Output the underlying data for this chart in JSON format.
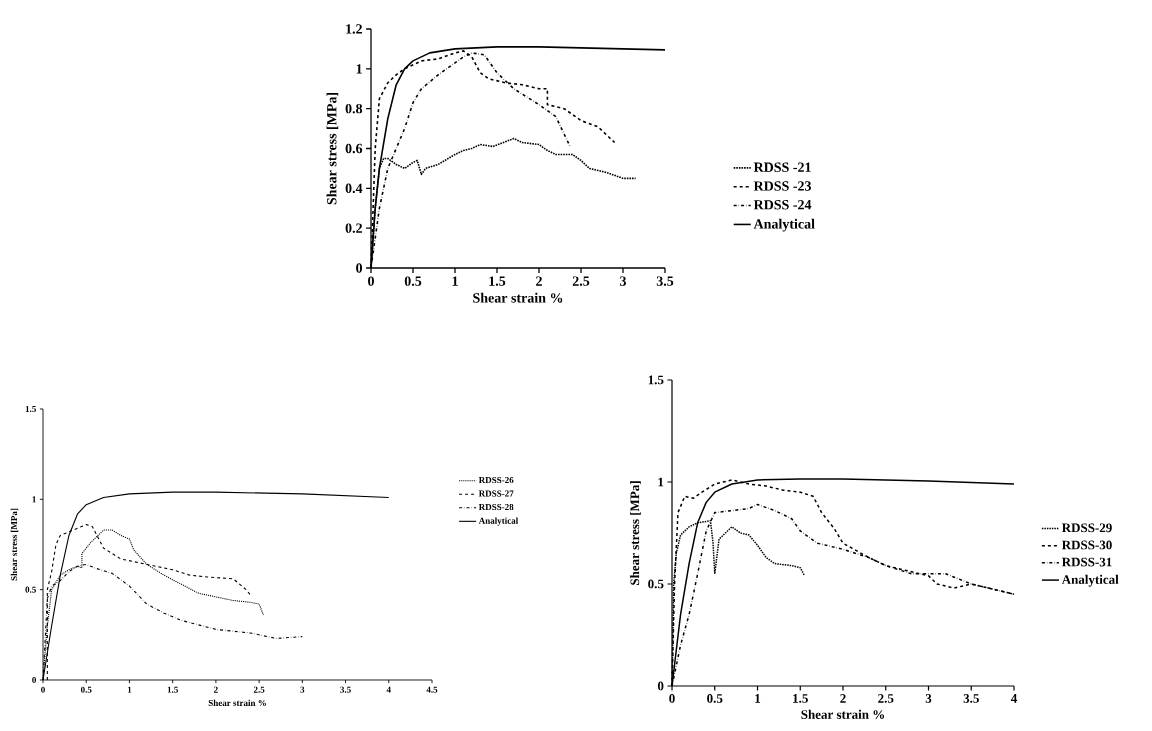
{
  "chart_data": [
    {
      "type": "line",
      "xlabel": "Shear strain %",
      "ylabel": "Shear stress [MPa]",
      "xlim": [
        0,
        3.5
      ],
      "ylim": [
        0,
        1.2
      ],
      "xticks": [
        0,
        0.5,
        1,
        1.5,
        2,
        2.5,
        3,
        3.5
      ],
      "yticks": [
        0,
        0.2,
        0.4,
        0.6,
        0.8,
        1,
        1.2
      ],
      "legend": "right",
      "grid": false,
      "series": [
        {
          "name": "RDSS -21",
          "color": "#000000",
          "line_style": "dotted",
          "x": [
            0,
            0.05,
            0.1,
            0.15,
            0.2,
            0.3,
            0.4,
            0.5,
            0.55,
            0.6,
            0.65,
            0.8,
            1,
            1.1,
            1.2,
            1.3,
            1.45,
            1.7,
            1.8,
            2,
            2.1,
            2.2,
            2.4,
            2.5,
            2.6,
            2.8,
            3,
            3.15
          ],
          "values": [
            0,
            0.3,
            0.5,
            0.55,
            0.55,
            0.52,
            0.5,
            0.53,
            0.54,
            0.47,
            0.5,
            0.52,
            0.57,
            0.59,
            0.6,
            0.62,
            0.61,
            0.65,
            0.63,
            0.62,
            0.59,
            0.57,
            0.57,
            0.54,
            0.5,
            0.48,
            0.45,
            0.45
          ]
        },
        {
          "name": "RDSS -23",
          "color": "#000000",
          "line_style": "dashed",
          "x": [
            0,
            0.05,
            0.1,
            0.2,
            0.3,
            0.4,
            0.6,
            0.8,
            1.0,
            1.1,
            1.2,
            1.3,
            1.4,
            1.6,
            1.8,
            2.0,
            2.1,
            2.1,
            2.3,
            2.5,
            2.7,
            2.8,
            2.9
          ],
          "values": [
            0,
            0.6,
            0.85,
            0.93,
            0.97,
            1.0,
            1.04,
            1.05,
            1.08,
            1.09,
            1.06,
            0.98,
            0.95,
            0.93,
            0.92,
            0.9,
            0.9,
            0.82,
            0.8,
            0.74,
            0.71,
            0.67,
            0.63
          ]
        },
        {
          "name": "RDSS -24",
          "color": "#000000",
          "line_style": "dashdot",
          "x": [
            0,
            0.1,
            0.2,
            0.3,
            0.4,
            0.5,
            0.6,
            0.8,
            1.0,
            1.1,
            1.2,
            1.35,
            1.5,
            1.7,
            2.0,
            2.2,
            2.37
          ],
          "values": [
            0,
            0.3,
            0.5,
            0.6,
            0.7,
            0.83,
            0.9,
            0.97,
            1.03,
            1.06,
            1.08,
            1.07,
            0.98,
            0.9,
            0.82,
            0.76,
            0.61
          ]
        },
        {
          "name": "Analytical",
          "color": "#000000",
          "line_style": "solid",
          "x": [
            0,
            0.05,
            0.1,
            0.2,
            0.3,
            0.4,
            0.5,
            0.7,
            1,
            1.5,
            2,
            2.5,
            3,
            3.5
          ],
          "values": [
            0,
            0.3,
            0.5,
            0.75,
            0.92,
            1.0,
            1.04,
            1.08,
            1.1,
            1.11,
            1.11,
            1.105,
            1.1,
            1.095
          ]
        }
      ]
    },
    {
      "type": "line",
      "xlabel": "Shear strain %",
      "ylabel": "Shear stress [MPa]",
      "xlim": [
        0,
        4.5
      ],
      "ylim": [
        0,
        1.5
      ],
      "xticks": [
        0,
        0.5,
        1,
        1.5,
        2,
        2.5,
        3,
        3.5,
        4,
        4.5
      ],
      "yticks": [
        0,
        0.5,
        1,
        1.5
      ],
      "legend": "right",
      "grid": false,
      "series": [
        {
          "name": "RDSS-26",
          "color": "#000000",
          "line_style": "dotted",
          "x": [
            0,
            0.05,
            0.1,
            0.2,
            0.3,
            0.4,
            0.45,
            0.45,
            0.55,
            0.7,
            0.8,
            0.9,
            1.0,
            1.05,
            1.2,
            1.4,
            1.6,
            1.8,
            2.0,
            2.2,
            2.4,
            2.5,
            2.55
          ],
          "values": [
            0,
            0.3,
            0.5,
            0.58,
            0.61,
            0.63,
            0.62,
            0.7,
            0.76,
            0.83,
            0.83,
            0.8,
            0.78,
            0.72,
            0.64,
            0.58,
            0.53,
            0.48,
            0.46,
            0.44,
            0.43,
            0.42,
            0.36
          ]
        },
        {
          "name": "RDSS-27",
          "color": "#000000",
          "line_style": "dashed",
          "x": [
            0.05,
            0.05,
            0.1,
            0.15,
            0.2,
            0.3,
            0.4,
            0.5,
            0.57,
            0.7,
            0.9,
            1.1,
            1.3,
            1.5,
            1.7,
            1.9,
            2.2,
            2.35,
            2.4
          ],
          "values": [
            0,
            0.5,
            0.6,
            0.75,
            0.8,
            0.82,
            0.84,
            0.86,
            0.85,
            0.73,
            0.67,
            0.65,
            0.63,
            0.61,
            0.58,
            0.57,
            0.56,
            0.5,
            0.47
          ]
        },
        {
          "name": "RDSS-28",
          "color": "#000000",
          "line_style": "dashdot",
          "x": [
            0,
            0.05,
            0.1,
            0.2,
            0.3,
            0.4,
            0.5,
            0.6,
            0.8,
            1.0,
            1.2,
            1.4,
            1.6,
            2.0,
            2.4,
            2.7,
            3.0
          ],
          "values": [
            0,
            0.45,
            0.52,
            0.55,
            0.6,
            0.63,
            0.64,
            0.62,
            0.59,
            0.52,
            0.42,
            0.37,
            0.33,
            0.28,
            0.26,
            0.23,
            0.24
          ]
        },
        {
          "name": "Analytical",
          "color": "#000000",
          "line_style": "solid",
          "x": [
            0,
            0.1,
            0.2,
            0.3,
            0.4,
            0.5,
            0.7,
            1,
            1.5,
            2,
            3,
            4
          ],
          "values": [
            0,
            0.3,
            0.58,
            0.8,
            0.92,
            0.97,
            1.01,
            1.03,
            1.04,
            1.04,
            1.03,
            1.01
          ]
        }
      ]
    },
    {
      "type": "line",
      "xlabel": "Shear strain %",
      "ylabel": "Shear stress [MPa]",
      "xlim": [
        0,
        4
      ],
      "ylim": [
        0,
        1.5
      ],
      "xticks": [
        0,
        0.5,
        1,
        1.5,
        2,
        2.5,
        3,
        3.5,
        4
      ],
      "yticks": [
        0,
        0.5,
        1,
        1.5
      ],
      "legend": "right",
      "grid": false,
      "series": [
        {
          "name": "RDSS-29",
          "color": "#000000",
          "line_style": "dotted",
          "x": [
            0,
            0.02,
            0.05,
            0.1,
            0.2,
            0.3,
            0.45,
            0.48,
            0.5,
            0.55,
            0.7,
            0.8,
            0.9,
            1.0,
            1.1,
            1.2,
            1.4,
            1.5,
            1.55
          ],
          "values": [
            0,
            0.5,
            0.65,
            0.74,
            0.78,
            0.8,
            0.81,
            0.7,
            0.55,
            0.72,
            0.78,
            0.75,
            0.74,
            0.69,
            0.63,
            0.6,
            0.59,
            0.58,
            0.54
          ]
        },
        {
          "name": "RDSS-30",
          "color": "#000000",
          "line_style": "dashed",
          "x": [
            0,
            0.03,
            0.07,
            0.15,
            0.25,
            0.35,
            0.5,
            0.7,
            0.9,
            1.1,
            1.3,
            1.5,
            1.65,
            1.75,
            1.9,
            2.0,
            2.3,
            2.5,
            3.0,
            3.1,
            3.3,
            3.5,
            3.7,
            4.0
          ],
          "values": [
            0,
            0.5,
            0.85,
            0.93,
            0.92,
            0.95,
            0.99,
            1.01,
            0.99,
            0.98,
            0.96,
            0.95,
            0.93,
            0.85,
            0.77,
            0.7,
            0.63,
            0.59,
            0.54,
            0.5,
            0.48,
            0.5,
            0.48,
            0.45
          ]
        },
        {
          "name": "RDSS-31",
          "color": "#000000",
          "line_style": "dashdot",
          "x": [
            0,
            0.1,
            0.2,
            0.3,
            0.4,
            0.5,
            0.7,
            0.9,
            1.0,
            1.2,
            1.4,
            1.5,
            1.7,
            2.0,
            2.3,
            2.5,
            2.8,
            3.0,
            3.2,
            3.5,
            4.0
          ],
          "values": [
            0,
            0.2,
            0.35,
            0.55,
            0.76,
            0.85,
            0.86,
            0.87,
            0.89,
            0.86,
            0.82,
            0.76,
            0.7,
            0.67,
            0.63,
            0.59,
            0.55,
            0.55,
            0.55,
            0.5,
            0.45
          ]
        },
        {
          "name": "Analytical",
          "color": "#000000",
          "line_style": "solid",
          "x": [
            0,
            0.1,
            0.2,
            0.3,
            0.4,
            0.5,
            0.7,
            1,
            1.5,
            2,
            3,
            4
          ],
          "values": [
            0,
            0.35,
            0.6,
            0.8,
            0.9,
            0.95,
            0.99,
            1.01,
            1.015,
            1.015,
            1.005,
            0.99
          ]
        }
      ]
    }
  ]
}
